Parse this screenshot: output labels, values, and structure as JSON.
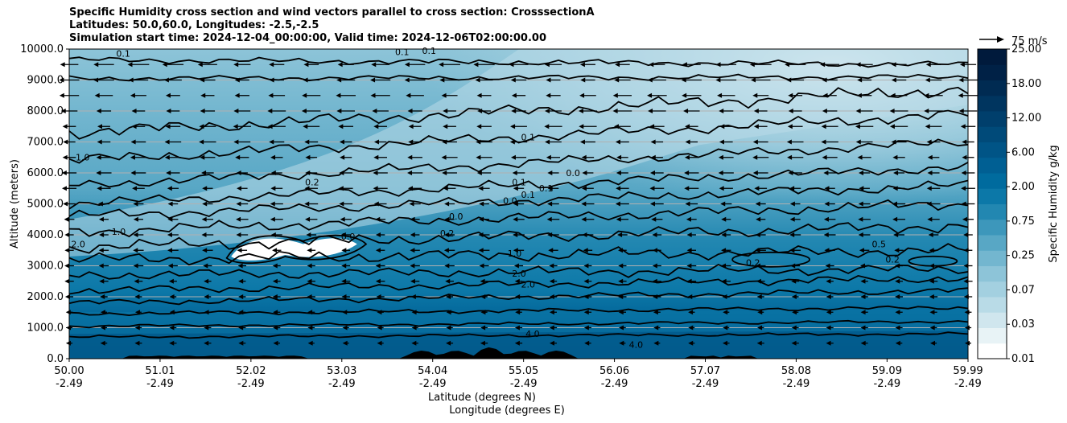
{
  "chart_data": {
    "type": "heatmap",
    "title_lines": [
      "Specific Humidity cross section and wind vectors parallel to cross section: CrosssectionA",
      "Latitudes: 50.0,60.0, Longitudes: -2.5,-2.5",
      "Simulation start time: 2024-12-04_00:00:00, Valid time: 2024-12-06T02:00:00.00"
    ],
    "ylabel": "Altitude (meters)",
    "xlabel_lines": [
      "Latitude (degrees N)",
      "Longitude (degrees E)"
    ],
    "ylim": [
      0,
      10000
    ],
    "yticks": [
      {
        "value": 0,
        "label": "0.0"
      },
      {
        "value": 1000,
        "label": "1000.0"
      },
      {
        "value": 2000,
        "label": "2000.0"
      },
      {
        "value": 3000,
        "label": "3000.0"
      },
      {
        "value": 4000,
        "label": "4000.0"
      },
      {
        "value": 5000,
        "label": "5000.0"
      },
      {
        "value": 6000,
        "label": "6000.0"
      },
      {
        "value": 7000,
        "label": "7000.0"
      },
      {
        "value": 8000,
        "label": "8000.0"
      },
      {
        "value": 9000,
        "label": "9000.0"
      },
      {
        "value": 10000,
        "label": "10000.0"
      }
    ],
    "xlim": [
      50.0,
      59.99
    ],
    "xticks": [
      {
        "value": 50.0,
        "lat": "50.00",
        "lon": "-2.49"
      },
      {
        "value": 51.01,
        "lat": "51.01",
        "lon": "-2.49"
      },
      {
        "value": 52.02,
        "lat": "52.02",
        "lon": "-2.49"
      },
      {
        "value": 53.03,
        "lat": "53.03",
        "lon": "-2.49"
      },
      {
        "value": 54.04,
        "lat": "54.04",
        "lon": "-2.49"
      },
      {
        "value": 55.05,
        "lat": "55.05",
        "lon": "-2.49"
      },
      {
        "value": 56.06,
        "lat": "56.06",
        "lon": "-2.49"
      },
      {
        "value": 57.07,
        "lat": "57.07",
        "lon": "-2.49"
      },
      {
        "value": 58.08,
        "lat": "58.08",
        "lon": "-2.49"
      },
      {
        "value": 59.09,
        "lat": "59.09",
        "lon": "-2.49"
      },
      {
        "value": 59.99,
        "lat": "59.99",
        "lon": "-2.49"
      }
    ],
    "grid": true,
    "colorbar": {
      "label": "Specific Humidity g/kg",
      "levels": [
        0.01,
        0.03,
        0.07,
        0.25,
        0.75,
        2.0,
        6.0,
        12.0,
        18.0,
        25.0
      ],
      "tick_labels": [
        "0.01",
        "0.03",
        "0.07",
        "0.25",
        "0.75",
        "2.00",
        "6.00",
        "12.00",
        "18.00",
        "25.00"
      ],
      "colors": [
        "#ffffff",
        "#e8f3f6",
        "#d0e6ee",
        "#b9dbe7",
        "#a3d0e0",
        "#8dc4d8",
        "#73b6cf",
        "#58a7c5",
        "#3d97bb",
        "#2287b1",
        "#0c78a8",
        "#006b9e",
        "#005f93",
        "#005486",
        "#004a79",
        "#003f6c",
        "#00355f",
        "#002b52",
        "#002146",
        "#001a3c"
      ]
    },
    "quiver_key": {
      "label": "75 m/s",
      "value": 75
    },
    "contour_labels": [
      {
        "text": "0.1",
        "x": 50.6,
        "y": 9750
      },
      {
        "text": "0.1",
        "x": 53.7,
        "y": 9800
      },
      {
        "text": "0.1",
        "x": 54.0,
        "y": 9850
      },
      {
        "text": "1.0",
        "x": 50.15,
        "y": 6400
      },
      {
        "text": "0.2",
        "x": 52.7,
        "y": 5600
      },
      {
        "text": "0.1",
        "x": 55.1,
        "y": 7050
      },
      {
        "text": "0.1",
        "x": 55.0,
        "y": 5600
      },
      {
        "text": "0.1",
        "x": 55.3,
        "y": 5400
      },
      {
        "text": "0.1",
        "x": 55.1,
        "y": 5200
      },
      {
        "text": "0.0",
        "x": 55.6,
        "y": 5900
      },
      {
        "text": "0.0",
        "x": 54.3,
        "y": 4500
      },
      {
        "text": "0.0",
        "x": 54.9,
        "y": 5000
      },
      {
        "text": "0.0",
        "x": 53.1,
        "y": 3850
      },
      {
        "text": "0.2",
        "x": 54.2,
        "y": 3950
      },
      {
        "text": "1.0",
        "x": 50.55,
        "y": 4000
      },
      {
        "text": "2.0",
        "x": 50.1,
        "y": 3600
      },
      {
        "text": "1.0",
        "x": 54.95,
        "y": 3300
      },
      {
        "text": "2.0",
        "x": 55.0,
        "y": 2650
      },
      {
        "text": "2.0",
        "x": 55.1,
        "y": 2300
      },
      {
        "text": "4.0",
        "x": 55.15,
        "y": 700
      },
      {
        "text": "4.0",
        "x": 56.3,
        "y": 350
      },
      {
        "text": "0.2",
        "x": 57.6,
        "y": 3000
      },
      {
        "text": "0.5",
        "x": 59.0,
        "y": 3600
      },
      {
        "text": "0.2",
        "x": 59.15,
        "y": 3100
      }
    ]
  }
}
